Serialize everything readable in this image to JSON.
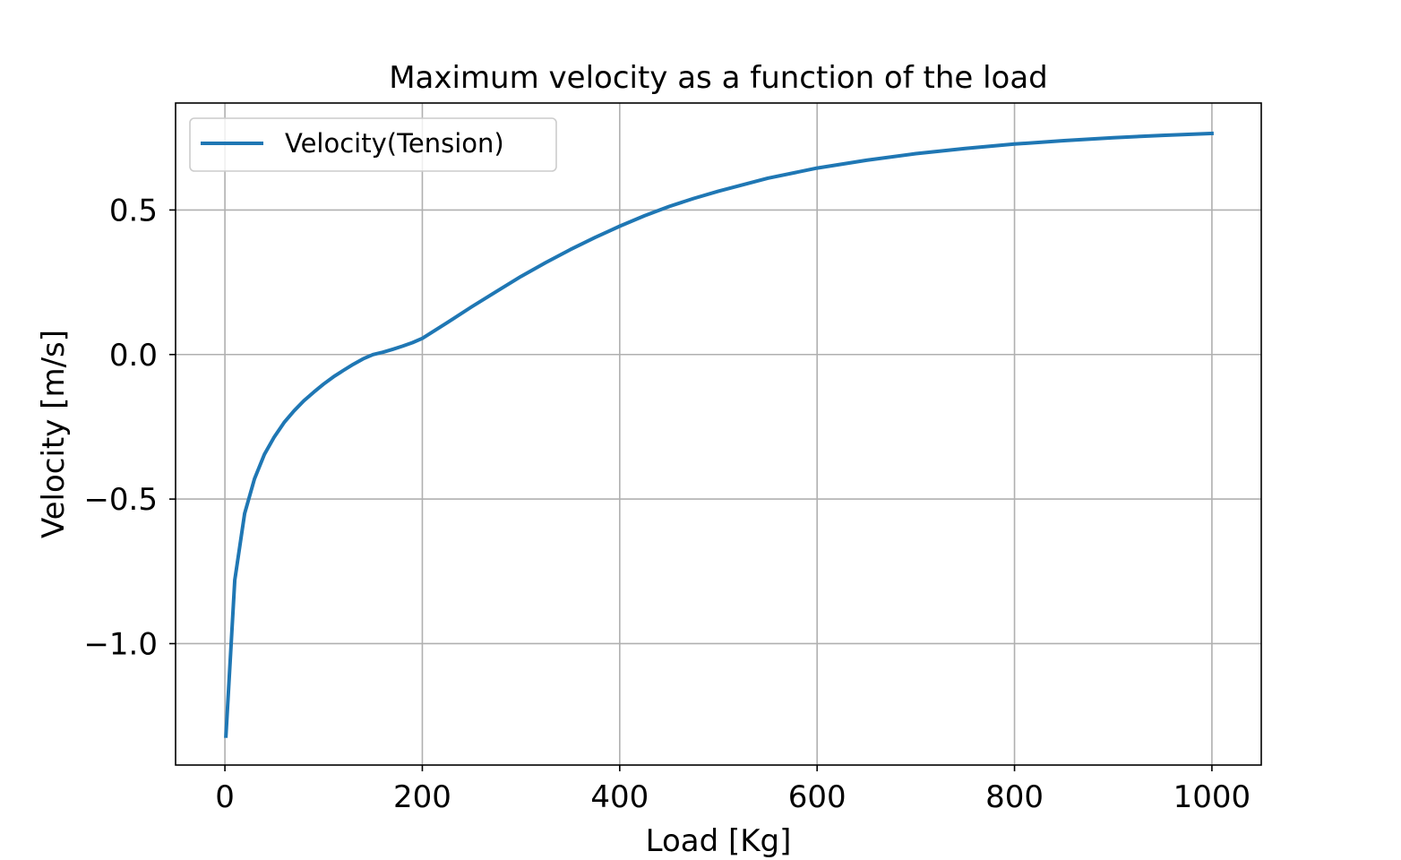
{
  "chart_data": {
    "type": "line",
    "title": "Maximum velocity as a function of the load",
    "xlabel": "Load [Kg]",
    "ylabel": "Velocity [m/s]",
    "xlim": [
      -50,
      1050
    ],
    "ylim": [
      -1.42,
      0.87
    ],
    "xticks": [
      0,
      200,
      400,
      600,
      800,
      1000
    ],
    "xtick_labels": [
      "0",
      "200",
      "400",
      "600",
      "800",
      "1000"
    ],
    "yticks": [
      -1.0,
      -0.5,
      0.0,
      0.5
    ],
    "ytick_labels": [
      "−1.0",
      "−0.5",
      "0.0",
      "0.5"
    ],
    "grid": true,
    "legend": {
      "position": "upper-left"
    },
    "series": [
      {
        "name": "Velocity(Tension)",
        "color": "#1f77b4",
        "x": [
          1,
          10,
          20,
          30,
          40,
          50,
          60,
          70,
          80,
          90,
          100,
          110,
          120,
          130,
          140,
          150,
          160,
          170,
          180,
          190,
          200,
          225,
          250,
          275,
          300,
          325,
          350,
          375,
          400,
          425,
          450,
          475,
          500,
          550,
          600,
          650,
          700,
          750,
          800,
          850,
          900,
          950,
          1000
        ],
        "y": [
          -1.32,
          -0.78,
          -0.55,
          -0.43,
          -0.345,
          -0.285,
          -0.235,
          -0.195,
          -0.16,
          -0.13,
          -0.102,
          -0.077,
          -0.055,
          -0.034,
          -0.015,
          0.0,
          0.008,
          0.018,
          0.029,
          0.041,
          0.056,
          0.11,
          0.165,
          0.218,
          0.27,
          0.318,
          0.363,
          0.405,
          0.444,
          0.48,
          0.512,
          0.54,
          0.565,
          0.61,
          0.645,
          0.672,
          0.695,
          0.713,
          0.728,
          0.74,
          0.75,
          0.758,
          0.765
        ]
      }
    ]
  }
}
